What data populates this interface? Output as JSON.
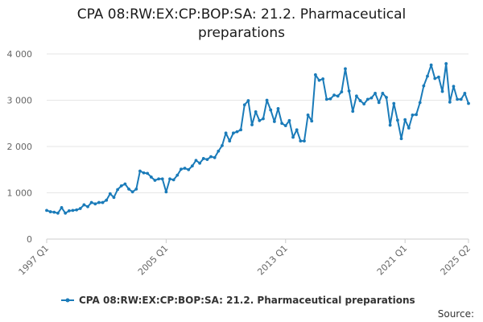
{
  "title_lines": [
    "CPA 08:RW:EX:CP:BOP:SA: 21.2. Pharmaceutical",
    "preparations"
  ],
  "source_label": "Source:",
  "colors": {
    "series": "#1a7bb9",
    "grid": "#e6e6e6",
    "axis": "#cccccc"
  },
  "chart_data": {
    "type": "line",
    "title": "CPA 08:RW:EX:CP:BOP:SA: 21.2. Pharmaceutical preparations",
    "xlabel": "",
    "ylabel": "",
    "ylim": [
      0,
      4000
    ],
    "yticks": [
      0,
      1000,
      2000,
      3000,
      4000
    ],
    "ytick_labels": [
      "0",
      "1 000",
      "2 000",
      "3 000",
      "4 000"
    ],
    "xtick_labels": [
      "1997 Q1",
      "2005 Q1",
      "2013 Q1",
      "2021 Q1",
      "2025 Q2"
    ],
    "grid": true,
    "legend_position": "bottom",
    "x": [
      "1997 Q1",
      "1997 Q2",
      "1997 Q3",
      "1997 Q4",
      "1998 Q1",
      "1998 Q2",
      "1998 Q3",
      "1998 Q4",
      "1999 Q1",
      "1999 Q2",
      "1999 Q3",
      "1999 Q4",
      "2000 Q1",
      "2000 Q2",
      "2000 Q3",
      "2000 Q4",
      "2001 Q1",
      "2001 Q2",
      "2001 Q3",
      "2001 Q4",
      "2002 Q1",
      "2002 Q2",
      "2002 Q3",
      "2002 Q4",
      "2003 Q1",
      "2003 Q2",
      "2003 Q3",
      "2003 Q4",
      "2004 Q1",
      "2004 Q2",
      "2004 Q3",
      "2004 Q4",
      "2005 Q1",
      "2005 Q2",
      "2005 Q3",
      "2005 Q4",
      "2006 Q1",
      "2006 Q2",
      "2006 Q3",
      "2006 Q4",
      "2007 Q1",
      "2007 Q2",
      "2007 Q3",
      "2007 Q4",
      "2008 Q1",
      "2008 Q2",
      "2008 Q3",
      "2008 Q4",
      "2009 Q1",
      "2009 Q2",
      "2009 Q3",
      "2009 Q4",
      "2010 Q1",
      "2010 Q2",
      "2010 Q3",
      "2010 Q4",
      "2011 Q1",
      "2011 Q2",
      "2011 Q3",
      "2011 Q4",
      "2012 Q1",
      "2012 Q2",
      "2012 Q3",
      "2012 Q4",
      "2013 Q1",
      "2013 Q2",
      "2013 Q3",
      "2013 Q4",
      "2014 Q1",
      "2014 Q2",
      "2014 Q3",
      "2014 Q4",
      "2015 Q1",
      "2015 Q2",
      "2015 Q3",
      "2015 Q4",
      "2016 Q1",
      "2016 Q2",
      "2016 Q3",
      "2016 Q4",
      "2017 Q1",
      "2017 Q2",
      "2017 Q3",
      "2017 Q4",
      "2018 Q1",
      "2018 Q2",
      "2018 Q3",
      "2018 Q4",
      "2019 Q1",
      "2019 Q2",
      "2019 Q3",
      "2019 Q4",
      "2020 Q1",
      "2020 Q2",
      "2020 Q3",
      "2020 Q4",
      "2021 Q1",
      "2021 Q2",
      "2021 Q3",
      "2021 Q4",
      "2022 Q1",
      "2022 Q2",
      "2022 Q3",
      "2022 Q4",
      "2023 Q1",
      "2023 Q2",
      "2023 Q3",
      "2023 Q4",
      "2024 Q1",
      "2024 Q2",
      "2024 Q3",
      "2024 Q4",
      "2025 Q1",
      "2025 Q2"
    ],
    "series": [
      {
        "name": "CPA 08:RW:EX:CP:BOP:SA: 21.2. Pharmaceutical preparations",
        "values": [
          620,
          590,
          580,
          560,
          680,
          560,
          610,
          620,
          630,
          660,
          740,
          700,
          790,
          760,
          790,
          790,
          840,
          980,
          900,
          1070,
          1150,
          1190,
          1080,
          1020,
          1080,
          1470,
          1430,
          1420,
          1340,
          1270,
          1300,
          1300,
          1020,
          1300,
          1280,
          1380,
          1510,
          1530,
          1500,
          1580,
          1700,
          1640,
          1740,
          1720,
          1780,
          1760,
          1900,
          2020,
          2290,
          2120,
          2290,
          2320,
          2360,
          2900,
          2990,
          2470,
          2750,
          2560,
          2600,
          3000,
          2790,
          2540,
          2820,
          2500,
          2450,
          2560,
          2200,
          2360,
          2120,
          2120,
          2680,
          2550,
          3550,
          3430,
          3460,
          3020,
          3030,
          3110,
          3090,
          3180,
          3680,
          3200,
          2760,
          3090,
          2990,
          2920,
          3020,
          3050,
          3150,
          2950,
          3150,
          3060,
          2460,
          2930,
          2570,
          2170,
          2580,
          2400,
          2680,
          2690,
          2950,
          3310,
          3520,
          3760,
          3470,
          3500,
          3190,
          3790,
          2960,
          3300,
          3020,
          3020,
          3150,
          2930
        ]
      }
    ]
  }
}
